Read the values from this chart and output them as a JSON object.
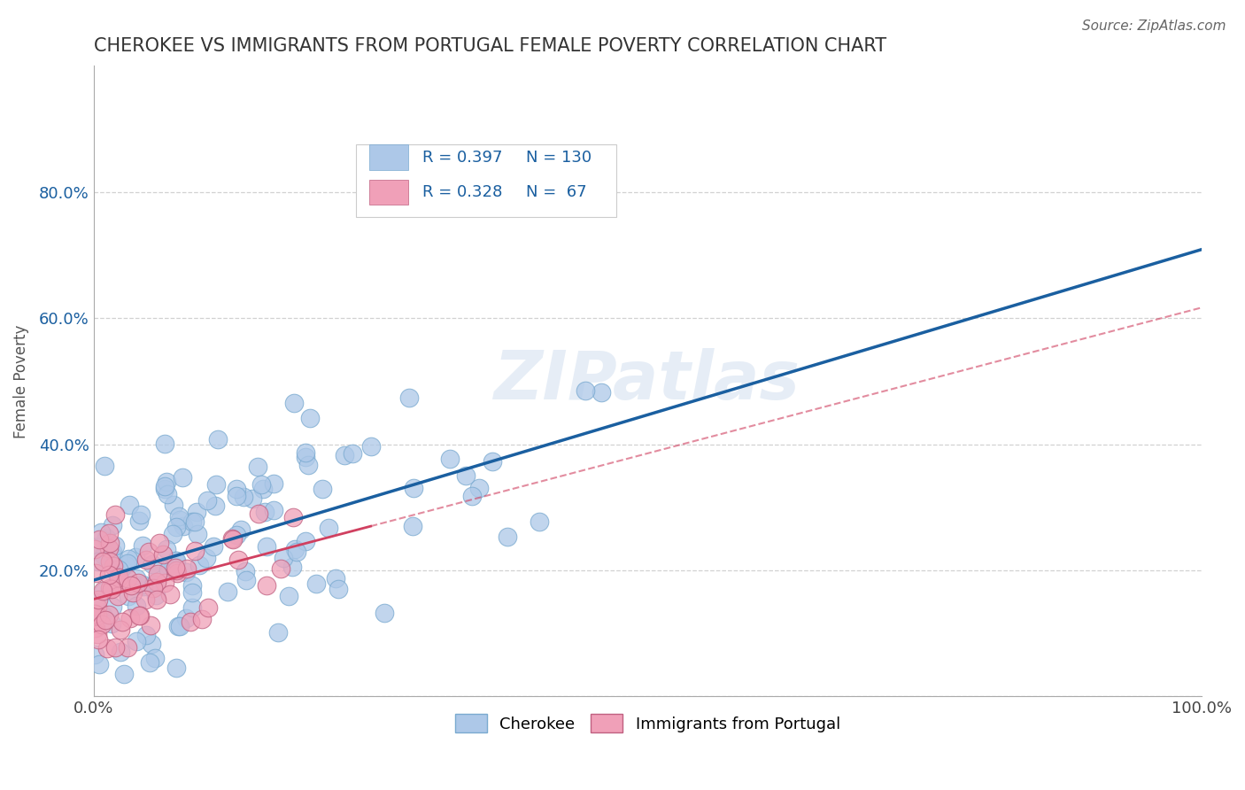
{
  "title": "CHEROKEE VS IMMIGRANTS FROM PORTUGAL FEMALE POVERTY CORRELATION CHART",
  "source": "Source: ZipAtlas.com",
  "ylabel": "Female Poverty",
  "watermark": "ZIPatlas",
  "legend_label1": "Cherokee",
  "legend_label2": "Immigrants from Portugal",
  "cherokee_color": "#adc8e8",
  "portugal_color": "#f0a0b8",
  "cherokee_line_color": "#1a5fa0",
  "portugal_line_color": "#d04060",
  "xlim": [
    0,
    1.0
  ],
  "ylim": [
    0,
    1.0
  ],
  "title_fontsize": 15,
  "tick_fontsize": 13,
  "ylabel_fontsize": 12
}
